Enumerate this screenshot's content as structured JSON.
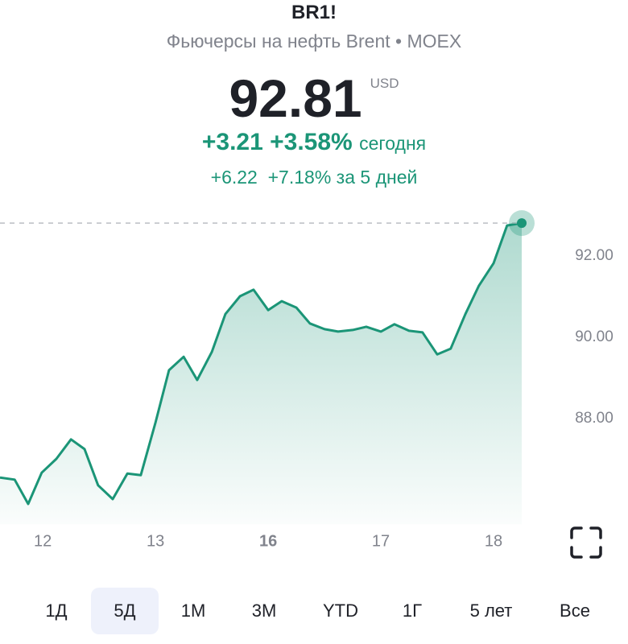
{
  "header": {
    "symbol": "BR1!",
    "subtitle": "Фьючерсы на нефть Brent • MOEX",
    "price": "92.81",
    "currency": "USD",
    "today": {
      "change": "+3.21",
      "change_pct": "+3.58%",
      "label": "сегодня"
    },
    "week": {
      "change": "+6.22",
      "change_pct": "+7.18%",
      "label": "за 5 дней"
    }
  },
  "chart_data": {
    "type": "line",
    "x": [
      -0.38,
      -0.25,
      -0.13,
      -0.01,
      0.12,
      0.25,
      0.37,
      0.49,
      0.62,
      0.75,
      0.87,
      1.0,
      1.12,
      1.25,
      1.37,
      1.5,
      1.62,
      1.75,
      1.87,
      2.0,
      2.12,
      2.25,
      2.37,
      2.5,
      2.62,
      2.75,
      2.87,
      3.0,
      3.12,
      3.25,
      3.37,
      3.5,
      3.62,
      3.75,
      3.87,
      4.0,
      4.12,
      4.25
    ],
    "series": [
      {
        "color": "#1b9577",
        "values": [
          86.55,
          86.5,
          85.9,
          86.67,
          87.01,
          87.49,
          87.25,
          86.36,
          86.02,
          86.65,
          86.61,
          87.9,
          89.19,
          89.52,
          88.95,
          89.64,
          90.57,
          91.01,
          91.17,
          90.67,
          90.89,
          90.73,
          90.34,
          90.2,
          90.14,
          90.18,
          90.26,
          90.14,
          90.32,
          90.16,
          90.12,
          89.58,
          89.72,
          90.57,
          91.27,
          91.82,
          92.75,
          92.81
        ]
      }
    ],
    "xlim": [
      -0.38,
      4.25
    ],
    "xticks": [
      {
        "value": 0,
        "label": "12"
      },
      {
        "value": 1,
        "label": "13"
      },
      {
        "value": 2,
        "label": "16"
      },
      {
        "value": 3,
        "label": "17"
      },
      {
        "value": 4,
        "label": "18"
      }
    ],
    "ylim": [
      85.4,
      93.4
    ],
    "yticks": [
      {
        "value": 88,
        "label": "88.00"
      },
      {
        "value": 90,
        "label": "90.00"
      },
      {
        "value": 92,
        "label": "92.00"
      }
    ]
  },
  "periods": [
    "1Д",
    "5Д",
    "1М",
    "3М",
    "YTD",
    "1Г",
    "5 лет",
    "Все"
  ],
  "selected_period": "5Д"
}
